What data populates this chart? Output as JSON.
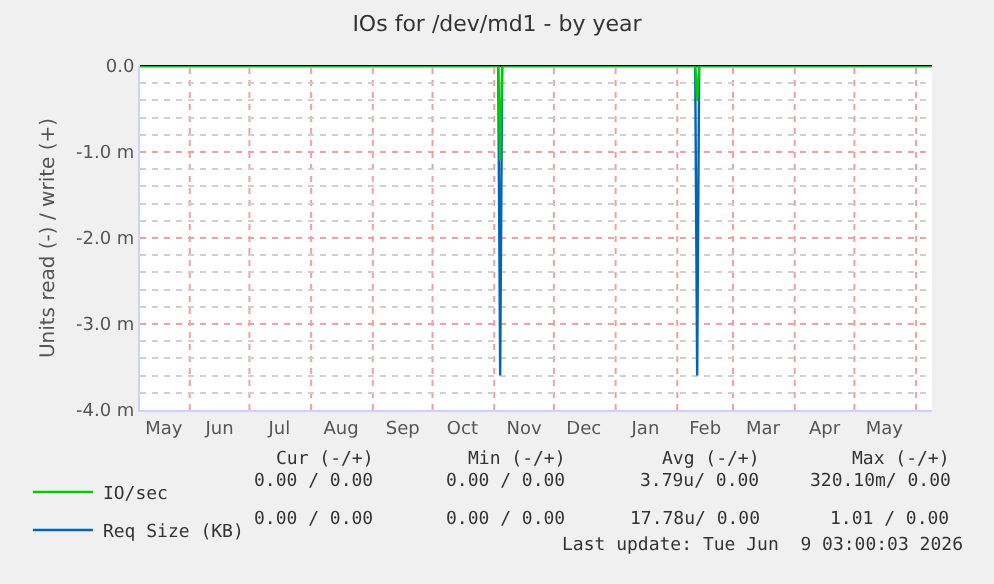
{
  "chart_data": {
    "type": "line",
    "title": "IOs for /dev/md1 - by year",
    "ylabel": "Units read (-) / write (+)",
    "xlim": [
      "2025-05-07",
      "2026-06-09"
    ],
    "xticks": [
      {
        "value": "2025-05-19",
        "label": "May"
      },
      {
        "value": "2025-06-01",
        "label": null
      },
      {
        "value": "2025-06-16",
        "label": "Jun"
      },
      {
        "value": "2025-07-01",
        "label": null
      },
      {
        "value": "2025-07-16",
        "label": "Jul"
      },
      {
        "value": "2025-08-01",
        "label": null
      },
      {
        "value": "2025-08-16",
        "label": "Aug"
      },
      {
        "value": "2025-09-01",
        "label": null
      },
      {
        "value": "2025-09-16",
        "label": "Sep"
      },
      {
        "value": "2025-10-01",
        "label": null
      },
      {
        "value": "2025-10-16",
        "label": "Oct"
      },
      {
        "value": "2025-11-01",
        "label": null
      },
      {
        "value": "2025-11-16",
        "label": "Nov"
      },
      {
        "value": "2025-12-01",
        "label": null
      },
      {
        "value": "2025-12-16",
        "label": "Dec"
      },
      {
        "value": "2026-01-01",
        "label": null
      },
      {
        "value": "2026-01-16",
        "label": "Jan"
      },
      {
        "value": "2026-02-01",
        "label": null
      },
      {
        "value": "2026-02-15",
        "label": "Feb"
      },
      {
        "value": "2026-03-01",
        "label": null
      },
      {
        "value": "2026-03-16",
        "label": "Mar"
      },
      {
        "value": "2026-04-01",
        "label": null
      },
      {
        "value": "2026-04-16",
        "label": "Apr"
      },
      {
        "value": "2026-05-01",
        "label": null
      },
      {
        "value": "2026-05-16",
        "label": "May"
      },
      {
        "value": "2026-06-01",
        "label": null
      }
    ],
    "ylim": [
      -4,
      0
    ],
    "yticks": [
      {
        "value": -4,
        "label": "-4.0 m"
      },
      {
        "value": -3,
        "label": "-3.0 m"
      },
      {
        "value": -2,
        "label": "-2.0 m"
      },
      {
        "value": -1,
        "label": "-1.0 m"
      },
      {
        "value": 0,
        "label": "0.0"
      }
    ],
    "grid": true,
    "legend": "bottom left",
    "line_style": "solid",
    "marker": "none",
    "series": [
      {
        "name": "Req Size (KB)",
        "color": "#0066b3",
        "x": [
          "2025-05-07",
          "2025-11-03",
          "2025-11-04",
          "2025-11-05",
          "2026-02-10",
          "2026-02-11",
          "2026-02-12",
          "2026-06-09"
        ],
        "values": [
          0,
          0,
          -3.6,
          0,
          0,
          -3.6,
          0,
          0
        ]
      },
      {
        "name": "IO/sec",
        "color": "#00cc00",
        "x": [
          "2025-05-07",
          "2025-11-03",
          "2025-11-04",
          "2025-11-05",
          "2026-02-10",
          "2026-02-11",
          "2026-02-12",
          "2026-06-09"
        ],
        "values": [
          0,
          0,
          -1.1,
          0,
          0,
          -0.4,
          0,
          0
        ]
      }
    ],
    "annotations": [
      "Cur (-/+)",
      "Min (-/+)",
      "Avg (-/+)",
      "Max (-/+)",
      "0.00 / 0.00",
      "0.00 / 0.00",
      "3.79u/ 0.00",
      "320.10m/ 0.00",
      "0.00 / 0.00",
      "0.00 / 0.00",
      "17.78u/ 0.00",
      "1.01 / 0.00",
      "Last update: Tue Jun  9 03:00:03 2026"
    ]
  }
}
